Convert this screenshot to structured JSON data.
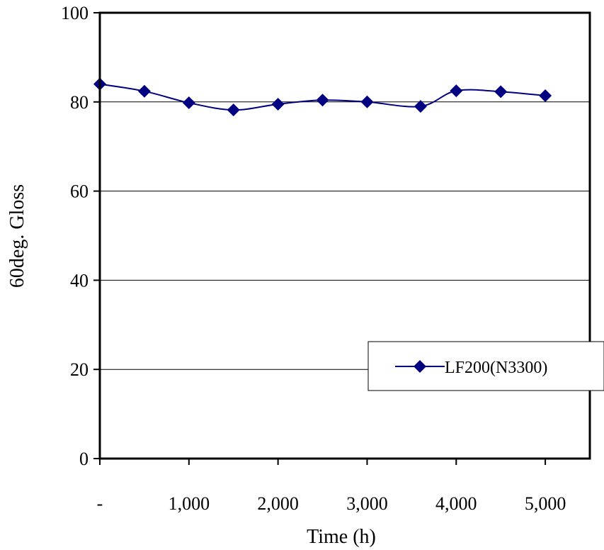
{
  "chart_data": {
    "type": "line",
    "title": "",
    "xlabel": "Time (h)",
    "ylabel": "60deg. Gloss",
    "xlim": [
      0,
      5500
    ],
    "ylim": [
      0,
      100
    ],
    "x_ticks": [
      0,
      1000,
      2000,
      3000,
      4000,
      5000
    ],
    "x_tick_labels": [
      "-",
      "1,000",
      "2,000",
      "3,000",
      "4,000",
      "5,000"
    ],
    "y_ticks": [
      0,
      20,
      40,
      60,
      80,
      100
    ],
    "y_tick_labels": [
      "0",
      "20",
      "40",
      "60",
      "80",
      "100"
    ],
    "grid": "horizontal",
    "legend_position": "right",
    "series": [
      {
        "name": "LF200(N3300)",
        "color": "#000080",
        "marker": "diamond",
        "x": [
          0,
          500,
          1000,
          1500,
          2000,
          2500,
          3000,
          3600,
          4000,
          4500,
          5000
        ],
        "y": [
          84.0,
          82.4,
          79.8,
          78.2,
          79.5,
          80.4,
          80.0,
          79.0,
          82.5,
          82.3,
          81.4
        ]
      }
    ]
  }
}
